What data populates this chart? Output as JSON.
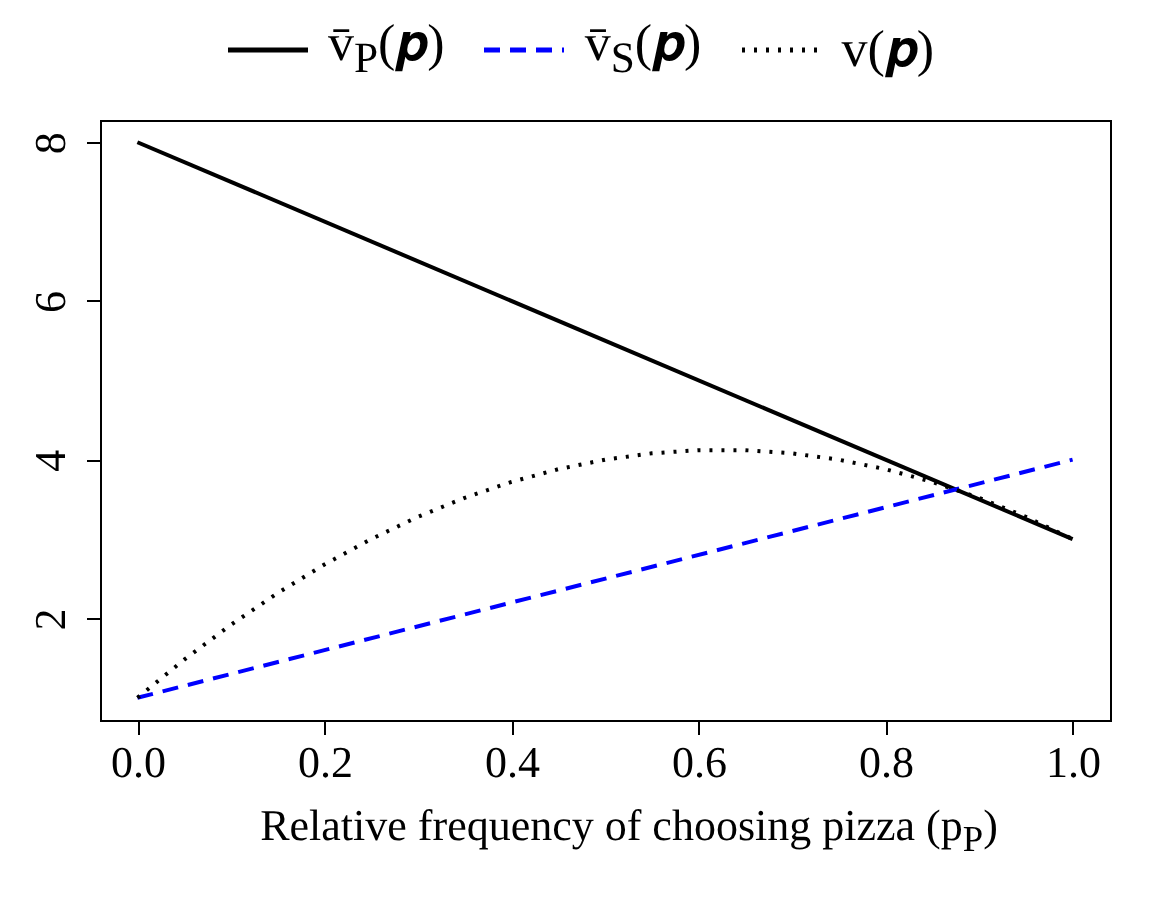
{
  "chart_data": {
    "type": "line",
    "xlabel": "Relative frequency of choosing pizza (p$_{P}$)",
    "xlim": [
      -0.04,
      1.04
    ],
    "xticks": [
      {
        "value": 0,
        "label": "0.0"
      },
      0.2,
      0.4,
      0.6,
      0.8,
      {
        "value": 1,
        "label": "1.0"
      }
    ],
    "ylim": [
      0.72,
      8.28
    ],
    "yticks": [
      2,
      4,
      6,
      8
    ],
    "grid": false,
    "legend": "top",
    "marker": "none",
    "series": [
      {
        "name": "v̄$_{P}$(𝒑)",
        "color": "#000000",
        "line_style": "solid",
        "x": [
          0,
          1
        ],
        "values": [
          8,
          3
        ]
      },
      {
        "name": "v̄$_{S}$(𝒑)",
        "color": "#0000ff",
        "line_style": "dashed",
        "x": [
          0,
          1
        ],
        "values": [
          1,
          4
        ]
      },
      {
        "name": "v(𝒑)",
        "color": "#000000",
        "line_style": "dotted",
        "x": [
          0,
          0.05,
          0.1,
          0.15,
          0.2,
          0.25,
          0.3,
          0.35,
          0.4,
          0.45,
          0.5,
          0.55,
          0.6,
          0.65,
          0.7,
          0.75,
          0.8,
          0.85,
          0.9,
          0.95,
          1
        ],
        "values": [
          1,
          1.48,
          1.92,
          2.32,
          2.68,
          3.0,
          3.28,
          3.52,
          3.72,
          3.88,
          4.0,
          4.08,
          4.12,
          4.12,
          4.08,
          4.0,
          3.88,
          3.72,
          3.52,
          3.28,
          3.0
        ]
      }
    ]
  }
}
